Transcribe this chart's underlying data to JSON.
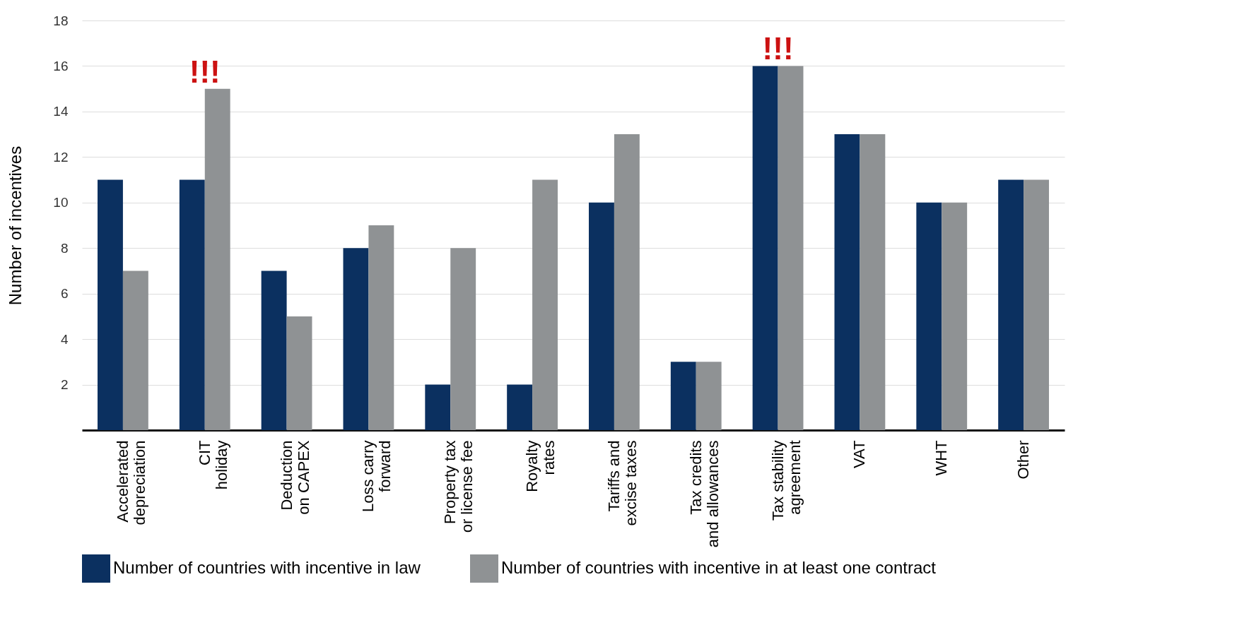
{
  "chart_data": {
    "type": "bar",
    "ylabel": "Number of  incentives",
    "categories": [
      "Accelerated depreciation",
      "CIT holiday",
      "Deduction on CAPEX",
      "Loss carry forward",
      "Property tax or license fee",
      "Royalty rates",
      "Tariffs and excise taxes",
      "Tax credits and allowances",
      "Tax stability agreement",
      "VAT",
      "WHT",
      "Other"
    ],
    "series": [
      {
        "name": "Number of countries with incentive in law",
        "color": "#0b3060",
        "values": [
          11,
          11,
          7,
          8,
          2,
          2,
          10,
          3,
          16,
          13,
          10,
          11
        ]
      },
      {
        "name": "Number of countries with incentive in at least one contract",
        "color": "#8f9294",
        "values": [
          7,
          15,
          5,
          9,
          8,
          11,
          13,
          3,
          16,
          13,
          10,
          11
        ]
      }
    ],
    "ylim": [
      0,
      18
    ],
    "yticks": [
      2,
      4,
      6,
      8,
      10,
      12,
      14,
      16,
      18
    ],
    "grid": "y",
    "legend": "bottom",
    "annotations": [
      {
        "text": "!!!",
        "x": "CIT holiday",
        "y": 15
      },
      {
        "text": "!!!",
        "x": "Tax stability agreement",
        "y": 16
      }
    ]
  }
}
